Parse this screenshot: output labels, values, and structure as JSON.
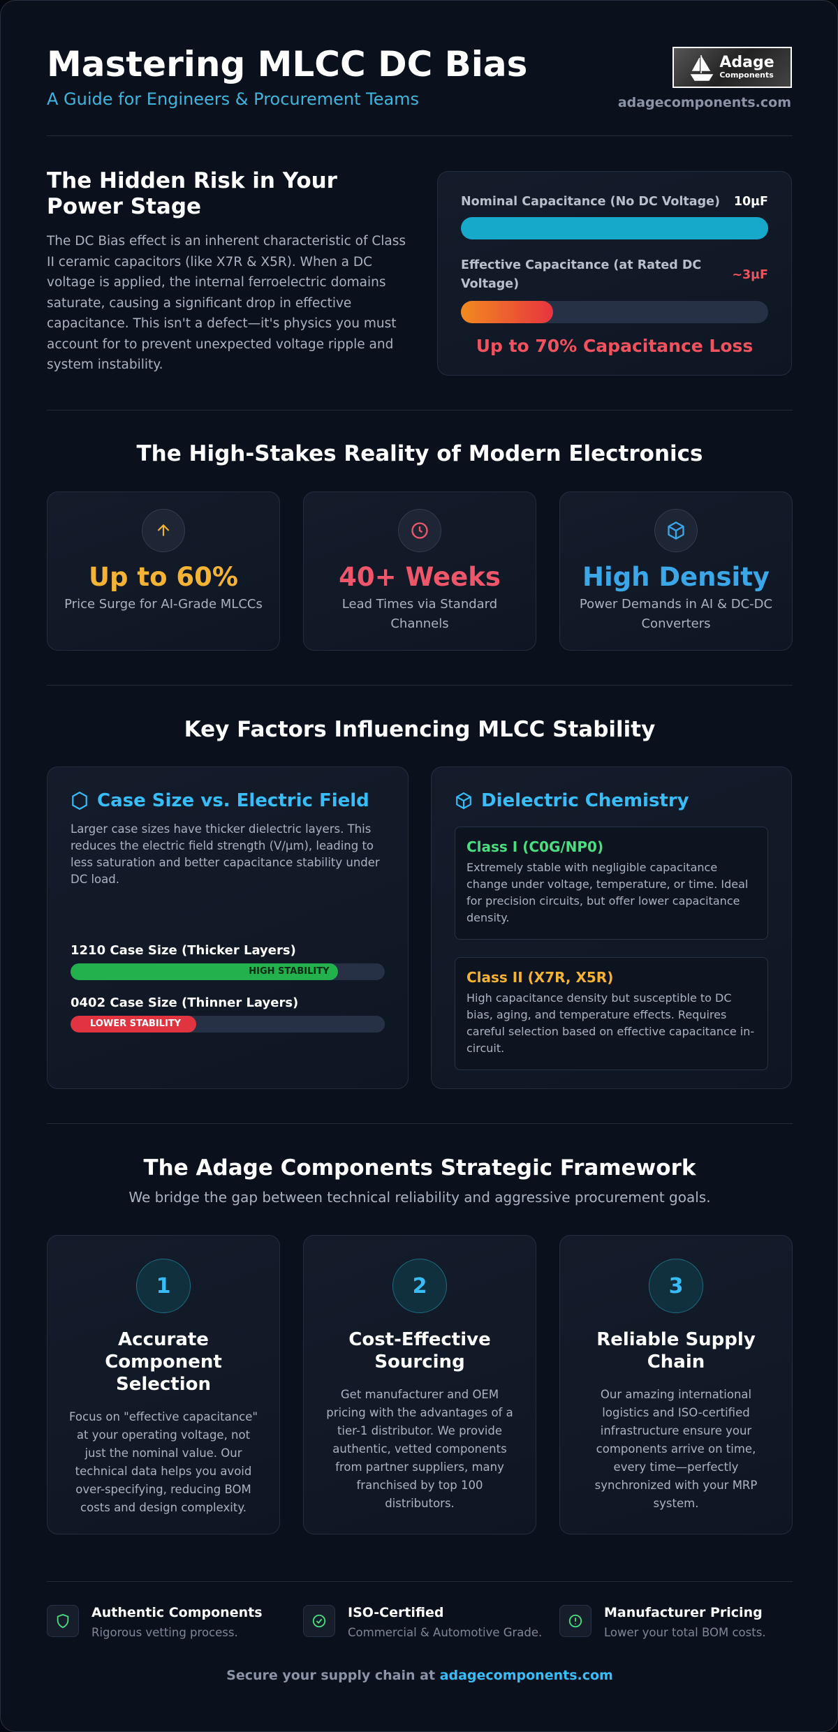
{
  "header": {
    "title": "Mastering MLCC DC Bias",
    "subtitle": "A Guide for Engineers & Procurement Teams",
    "logo": {
      "name": "Adage",
      "sub": "Components"
    },
    "url": "adagecomponents.com"
  },
  "risk": {
    "heading": "The Hidden Risk in Your Power Stage",
    "body": "The DC Bias effect is an inherent characteristic of Class II ceramic capacitors (like X7R & X5R). When a DC voltage is applied, the internal ferroelectric domains saturate, causing a significant drop in effective capacitance. This isn't a defect—it's physics you must account for to prevent unexpected voltage ripple and system instability.",
    "nominal": {
      "label": "Nominal Capacitance (No DC Voltage)",
      "value": "10µF"
    },
    "effective": {
      "label": "Effective Capacitance (at Rated DC Voltage)",
      "value": "~3µF"
    },
    "loss": "Up to 70% Capacitance Loss"
  },
  "stakes": {
    "heading": "The High-Stakes Reality of Modern Electronics",
    "cards": [
      {
        "value": "Up to 60%",
        "label": "Price Surge for AI-Grade MLCCs"
      },
      {
        "value": "40+ Weeks",
        "label": "Lead Times via Standard Channels"
      },
      {
        "value": "High Density",
        "label": "Power Demands in AI & DC-DC Converters"
      }
    ]
  },
  "factors": {
    "heading": "Key Factors Influencing MLCC Stability",
    "case": {
      "title": "Case Size vs. Electric Field",
      "body": "Larger case sizes have thicker dielectric layers. This reduces the electric field strength (V/μm), leading to less saturation and better capacitance stability under DC load.",
      "bars": [
        {
          "label": "1210 Case Size (Thicker Layers)",
          "badge": "HIGH STABILITY"
        },
        {
          "label": "0402 Case Size (Thinner Layers)",
          "badge": "LOWER STABILITY"
        }
      ]
    },
    "dielectric": {
      "title": "Dielectric Chemistry",
      "classes": [
        {
          "name": "Class I (C0G/NP0)",
          "body": "Extremely stable with negligible capacitance change under voltage, temperature, or time. Ideal for precision circuits, but offer lower capacitance density."
        },
        {
          "name": "Class II (X7R, X5R)",
          "body": "High capacitance density but susceptible to DC bias, aging, and temperature effects. Requires careful selection based on effective capacitance in-circuit."
        }
      ]
    }
  },
  "framework": {
    "heading": "The Adage Components Strategic Framework",
    "subtitle": "We bridge the gap between technical reliability and aggressive procurement goals.",
    "steps": [
      {
        "number": 1,
        "title": "Accurate Component Selection",
        "body": "Focus on \"effective capacitance\" at your operating voltage, not just the nominal value. Our technical data helps you avoid over-specifying, reducing BOM costs and design complexity."
      },
      {
        "number": 2,
        "title": "Cost-Effective Sourcing",
        "body": "Get manufacturer and OEM pricing with the advantages of a tier-1 distributor. We provide authentic, vetted components from partner suppliers, many franchised by top 100 distributors."
      },
      {
        "number": 3,
        "title": "Reliable Supply Chain",
        "body": "Our amazing international logistics and ISO-certified infrastructure ensure your components arrive on time, every time—perfectly synchronized with your MRP system."
      }
    ]
  },
  "features": [
    {
      "title": "Authentic Components",
      "body": "Rigorous vetting process."
    },
    {
      "title": "ISO-Certified",
      "body": "Commercial & Automotive Grade."
    },
    {
      "title": "Manufacturer Pricing",
      "body": "Lower your total BOM costs."
    }
  ],
  "footer": {
    "text": "Secure your supply chain at",
    "link": "adagecomponents.com"
  }
}
